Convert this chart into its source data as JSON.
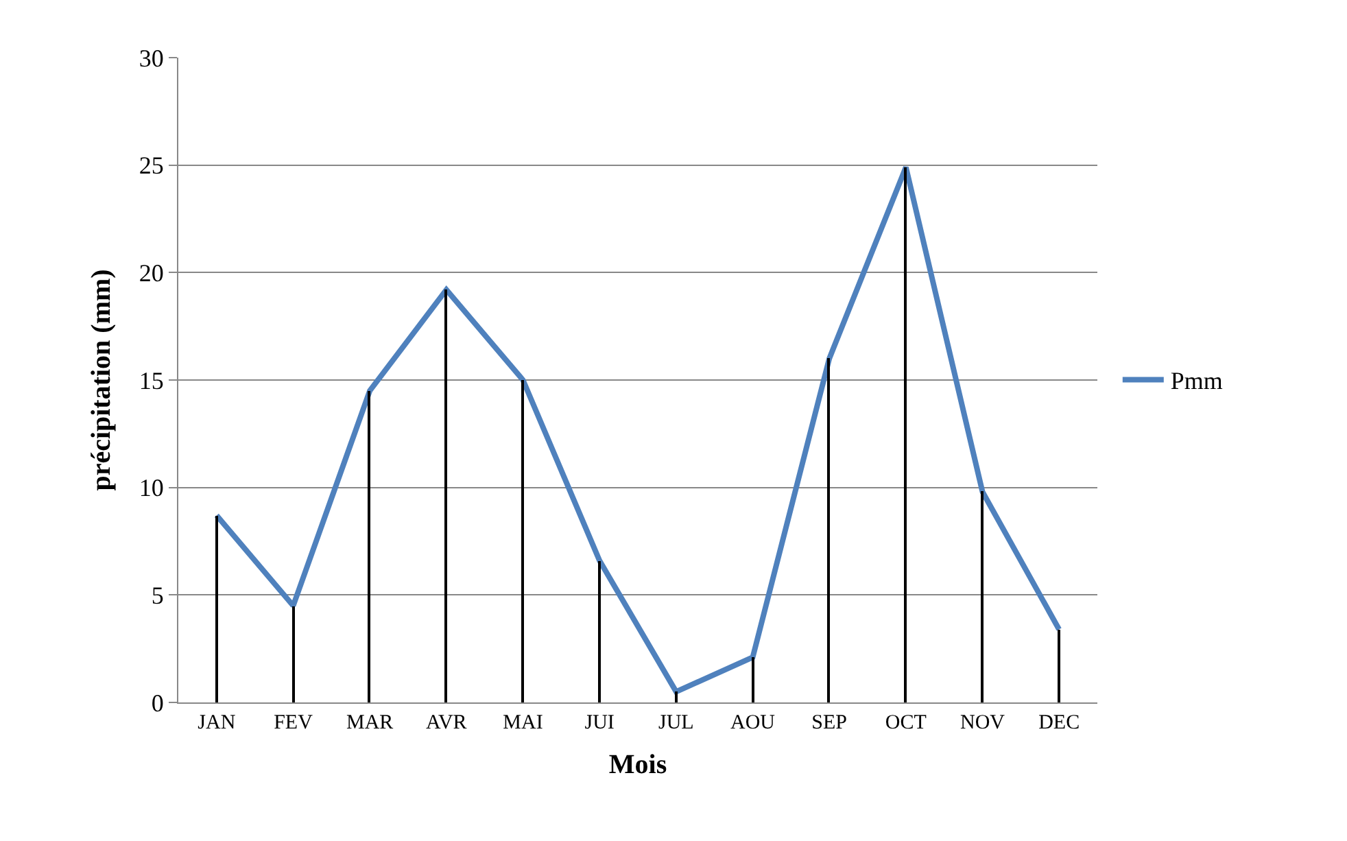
{
  "chart_data": {
    "type": "line",
    "xlabel": "Mois",
    "ylabel": "précipitation (mm)",
    "categories": [
      "JAN",
      "FEV",
      "MAR",
      "AVR",
      "MAI",
      "JUI",
      "JUL",
      "AOU",
      "SEP",
      "OCT",
      "NOV",
      "DEC"
    ],
    "series": [
      {
        "type": "bar",
        "color": "#000000",
        "values": [
          8.7,
          4.5,
          14.5,
          19.2,
          15.0,
          6.6,
          0.5,
          2.1,
          16.0,
          24.9,
          9.8,
          3.4
        ]
      },
      {
        "name": "Pmm",
        "color": "#4f81bd",
        "values": [
          8.7,
          4.5,
          14.5,
          19.2,
          15.0,
          6.6,
          0.5,
          2.1,
          16.0,
          24.9,
          9.8,
          3.4
        ]
      }
    ],
    "ylim": [
      0,
      30
    ],
    "yticks": [
      0,
      5,
      10,
      15,
      20,
      25,
      30
    ],
    "grid": "y",
    "legend": "right",
    "marker": "none",
    "line_style": "solid"
  }
}
